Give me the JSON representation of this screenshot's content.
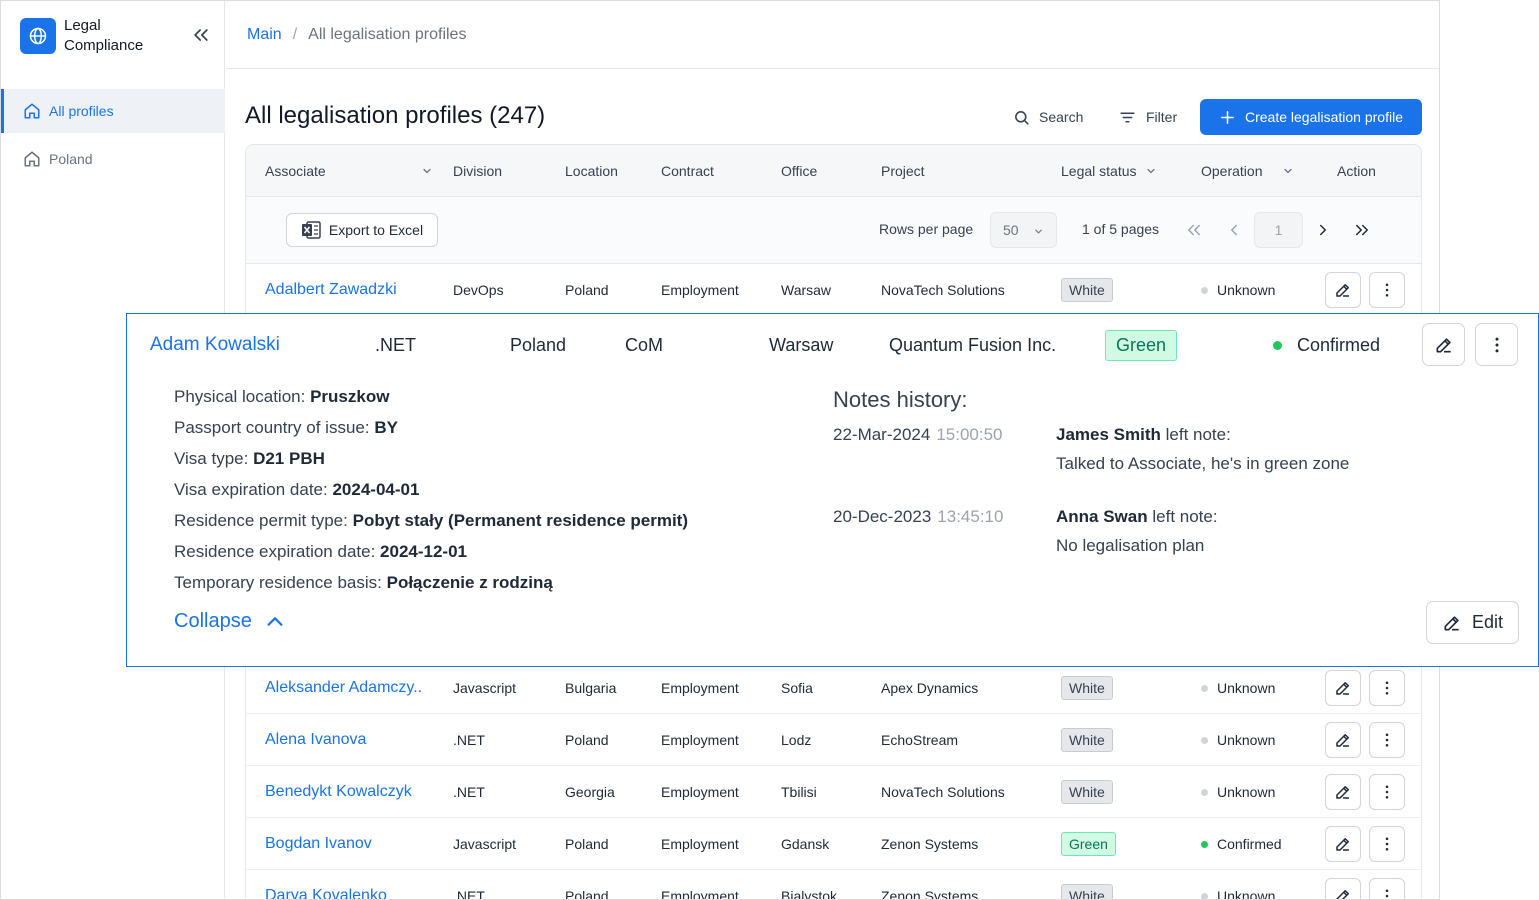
{
  "app": {
    "name": "Legal Compliance"
  },
  "sidebar": {
    "items": [
      {
        "label": "All profiles",
        "icon": "home-icon",
        "active": true
      },
      {
        "label": "Poland",
        "icon": "home-icon",
        "active": false
      }
    ]
  },
  "breadcrumb": {
    "root": "Main",
    "separator": "/",
    "current": "All legalisation profiles"
  },
  "page": {
    "title": "All legalisation profiles (247)"
  },
  "toolbar": {
    "search": "Search",
    "filter": "Filter",
    "create": "Create legalisation profile"
  },
  "table": {
    "columns": {
      "associate": "Associate",
      "division": "Division",
      "location": "Location",
      "contract": "Contract",
      "office": "Office",
      "project": "Project",
      "legal_status": "Legal status",
      "operation": "Operation",
      "action": "Action"
    },
    "export_label": "Export to Excel",
    "rows_per_page_label": "Rows per page",
    "rows_per_page_value": "50",
    "pages_text": "1 of 5 pages",
    "page_input": "1",
    "rows": [
      {
        "name": "Adalbert Zawadzki",
        "division": "DevOps",
        "location": "Poland",
        "contract": "Employment",
        "office": "Warsaw",
        "project": "NovaTech Solutions",
        "status": "White",
        "operation": "Unknown"
      },
      {
        "name": "Aleksander Adamczy..",
        "division": "Javascript",
        "location": "Bulgaria",
        "contract": "Employment",
        "office": "Sofia",
        "project": "Apex Dynamics",
        "status": "White",
        "operation": "Unknown"
      },
      {
        "name": "Alena Ivanova",
        "division": ".NET",
        "location": "Poland",
        "contract": "Employment",
        "office": "Lodz",
        "project": "EchoStream",
        "status": "White",
        "operation": "Unknown"
      },
      {
        "name": "Benedykt Kowalczyk",
        "division": ".NET",
        "location": "Georgia",
        "contract": "Employment",
        "office": "Tbilisi",
        "project": "NovaTech Solutions",
        "status": "White",
        "operation": "Unknown"
      },
      {
        "name": "Bogdan Ivanov",
        "division": "Javascript",
        "location": "Poland",
        "contract": "Employment",
        "office": "Gdansk",
        "project": "Zenon Systems",
        "status": "Green",
        "operation": "Confirmed"
      },
      {
        "name": "Darya Kovalenko",
        "division": ".NET",
        "location": "Poland",
        "contract": "Employment",
        "office": "Bialystok",
        "project": "Zenon Systems",
        "status": "White",
        "operation": "Unknown"
      }
    ]
  },
  "expanded": {
    "name": "Adam Kowalski",
    "division": ".NET",
    "location": "Poland",
    "contract": "CoM",
    "office": "Warsaw",
    "project": "Quantum Fusion Inc.",
    "status": "Green",
    "operation": "Confirmed",
    "details": [
      {
        "label": "Physical location:",
        "value": "Pruszkow"
      },
      {
        "label": "Passport country of issue:",
        "value": "BY"
      },
      {
        "label": "Visa type:",
        "value": "D21 PBH"
      },
      {
        "label": "Visa expiration date:",
        "value": "2024-04-01"
      },
      {
        "label": "Residence permit type:",
        "value": "Pobyt stały (Permanent residence permit)"
      },
      {
        "label": "Residence expiration date:",
        "value": "2024-12-01"
      },
      {
        "label": "Temporary residence basis:",
        "value": "Połączenie z rodziną"
      }
    ],
    "notes_title": "Notes history:",
    "notes": [
      {
        "date": "22-Mar-2024",
        "time": "15:00:50",
        "author": "James Smith",
        "suffix": "left note:",
        "text": "Talked to Associate, he's in green zone"
      },
      {
        "date": "20-Dec-2023",
        "time": "13:45:10",
        "author": "Anna Swan",
        "suffix": "left note:",
        "text": "No legalisation plan"
      }
    ],
    "collapse_label": "Collapse",
    "edit_label": "Edit"
  },
  "colors": {
    "accent": "#1a73e8",
    "green_badge": "#d1fae5",
    "green_dot": "#22c55e",
    "grey_badge": "#e5e7eb"
  }
}
